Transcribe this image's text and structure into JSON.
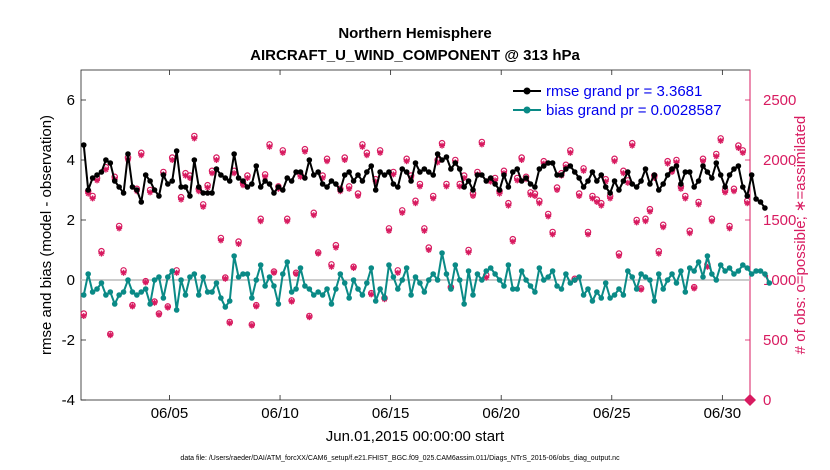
{
  "chart_data": {
    "type": "line",
    "title": "Northern Hemisphere",
    "subtitle": "AIRCRAFT_U_WIND_COMPONENT @ 313 hPa",
    "xlabel": "Jun.01,2015 00:00:00 start",
    "ylabel": "rmse and bias (model - observation)",
    "y2label": "# of obs: o=possible; ∗=assimilated",
    "footer": "data file: /Users/raeder/DAI/ATM_forcXX/CAM6_setup/f.e21.FHIST_BGC.f09_025.CAM6assim.011/Diags_NTrS_2015-06/obs_diag_output.nc",
    "xlim": [
      1,
      31.25
    ],
    "ylim": [
      -4,
      7
    ],
    "y2lim": [
      0,
      2750
    ],
    "x_ticks": [
      5,
      10,
      15,
      20,
      25,
      30
    ],
    "x_tick_labels": [
      "06/05",
      "06/10",
      "06/15",
      "06/20",
      "06/25",
      "06/30"
    ],
    "y_ticks": [
      -4,
      -2,
      0,
      2,
      4,
      6
    ],
    "y_tick_labels": [
      "-4",
      "-2",
      "0",
      "2",
      "4",
      "6"
    ],
    "y2_ticks": [
      0,
      500,
      1000,
      1500,
      2000,
      2500
    ],
    "y2_tick_labels": [
      "0",
      "500",
      "1000",
      "1500",
      "2000",
      "2500"
    ],
    "colors": {
      "rmse": "#000000",
      "bias": "#0a8a86",
      "obs": "#d81b60",
      "zero_line": "#bbbbbb"
    },
    "legend": [
      {
        "label": "rmse grand pr = 3.3681",
        "series": "rmse"
      },
      {
        "label": "bias grand pr = 0.0028587",
        "series": "bias"
      }
    ],
    "rmse_values": [
      4.5,
      3.0,
      3.4,
      3.5,
      3.6,
      4.0,
      3.9,
      3.3,
      3.1,
      2.9,
      4.2,
      3.1,
      3.0,
      2.6,
      3.5,
      3.3,
      3.0,
      2.8,
      3.5,
      3.2,
      3.3,
      4.3,
      3.1,
      3.1,
      2.8,
      4.0,
      3.1,
      2.9,
      2.9,
      2.9,
      3.7,
      3.5,
      3.4,
      3.3,
      4.2,
      3.4,
      3.3,
      3.1,
      3.2,
      3.8,
      3.1,
      3.3,
      3.2,
      2.9,
      3.1,
      3.0,
      3.4,
      3.3,
      3.6,
      3.6,
      3.4,
      4.0,
      3.5,
      3.6,
      3.2,
      3.1,
      3.3,
      3.2,
      3.0,
      3.5,
      3.6,
      3.3,
      3.5,
      3.3,
      3.6,
      3.8,
      3.0,
      3.6,
      3.5,
      3.6,
      3.2,
      3.1,
      3.7,
      3.6,
      3.3,
      3.9,
      3.6,
      3.7,
      3.6,
      3.5,
      4.2,
      4.0,
      4.1,
      3.7,
      3.9,
      3.7,
      3.1,
      3.3,
      3.0,
      3.5,
      3.5,
      3.3,
      3.4,
      3.2,
      3.0,
      3.5,
      3.1,
      3.6,
      3.7,
      3.3,
      3.4,
      3.2,
      3.1,
      3.7,
      3.8,
      3.9,
      3.9,
      3.5,
      3.5,
      3.7,
      3.8,
      3.6,
      3.4,
      3.1,
      3.3,
      3.6,
      3.3,
      3.5,
      3.1,
      2.9,
      3.3,
      3.0,
      3.3,
      3.6,
      3.2,
      3.1,
      3.3,
      3.7,
      3.2,
      3.5,
      3.0,
      3.2,
      3.5,
      3.7,
      3.8,
      3.2,
      3.6,
      3.6,
      3.1,
      3.3,
      3.8,
      3.6,
      3.4,
      3.9,
      3.5,
      3.1,
      3.5,
      3.7,
      3.8,
      3.1,
      2.8,
      3.5,
      2.7,
      2.6,
      2.4
    ],
    "bias_values": [
      -0.5,
      0.2,
      -0.4,
      -0.3,
      -0.1,
      -0.5,
      -0.4,
      -0.8,
      -0.5,
      -0.4,
      0.0,
      -0.4,
      -0.5,
      -0.4,
      -0.3,
      -0.8,
      0.0,
      0.1,
      -0.6,
      0.1,
      0.3,
      -1.0,
      0.0,
      -0.5,
      0.1,
      0.2,
      -0.5,
      0.1,
      -0.4,
      -0.4,
      -0.1,
      -0.6,
      -0.9,
      -0.7,
      0.8,
      0.1,
      0.2,
      0.2,
      -0.6,
      0.0,
      0.5,
      -0.2,
      0.1,
      -0.2,
      -0.8,
      0.2,
      0.6,
      -0.4,
      -0.3,
      0.4,
      -0.2,
      -0.3,
      -0.5,
      -0.4,
      -0.5,
      -0.3,
      -0.8,
      -0.3,
      0.2,
      -0.1,
      -0.6,
      0.0,
      -0.3,
      -0.5,
      -0.1,
      0.4,
      -0.7,
      -0.3,
      -0.6,
      0.5,
      0.1,
      -0.3,
      0.0,
      0.4,
      -0.5,
      0.1,
      -0.1,
      -0.4,
      0.0,
      0.2,
      0.0,
      0.9,
      0.2,
      -0.3,
      0.5,
      0.0,
      -0.8,
      0.3,
      -0.5,
      0.2,
      0.0,
      0.3,
      0.4,
      0.2,
      0.0,
      -0.2,
      0.5,
      -0.3,
      -0.3,
      0.3,
      0.0,
      -0.2,
      -0.4,
      0.4,
      0.0,
      0.1,
      0.3,
      -0.2,
      -0.3,
      0.2,
      -0.1,
      0.0,
      0.1,
      -0.5,
      -0.3,
      -0.7,
      -0.4,
      -0.6,
      -0.1,
      -0.6,
      -0.5,
      -0.3,
      -0.5,
      0.3,
      0.1,
      -0.3,
      0.2,
      0.1,
      0.0,
      -0.7,
      0.2,
      -0.3,
      0.0,
      0.2,
      -0.1,
      0.3,
      -0.4,
      0.4,
      0.3,
      0.6,
      0.1,
      0.8,
      0.2,
      0.0,
      0.5,
      0.3,
      0.4,
      0.2,
      0.3,
      0.5,
      0.4,
      0.2,
      0.3,
      0.3,
      0.2,
      -0.1
    ],
    "obs_possible": [
      720,
      1740,
      1700,
      1850,
      1240,
      1940,
      550,
      1860,
      1450,
      1080,
      2020,
      790,
      1760,
      2060,
      990,
      1750,
      820,
      720,
      1900,
      780,
      2020,
      1080,
      1690,
      1890,
      1870,
      2200,
      1760,
      1630,
      1790,
      1910,
      2020,
      1350,
      1020,
      650,
      1910,
      1320,
      1810,
      1870,
      630,
      790,
      1510,
      1880,
      2130,
      1070,
      1780,
      2080,
      1510,
      830,
      1060,
      1880,
      2090,
      700,
      1560,
      1230,
      1870,
      2010,
      1130,
      1290,
      1760,
      2020,
      1780,
      1110,
      1720,
      2130,
      2060,
      890,
      1840,
      2080,
      850,
      1430,
      1900,
      1080,
      1580,
      2010,
      1870,
      1660,
      1800,
      1430,
      1270,
      1700,
      2000,
      2140,
      1800,
      940,
      2000,
      1800,
      1870,
      1250,
      1720,
      1900,
      2150,
      1040,
      1840,
      1850,
      1740,
      1910,
      1640,
      1340,
      1850,
      2020,
      1860,
      1730,
      1720,
      1660,
      1990,
      1550,
      1400,
      1770,
      1890,
      1960,
      2080,
      1010,
      1720,
      1930,
      1400,
      1700,
      1670,
      1640,
      1840,
      1700,
      2010,
      1220,
      1910,
      1830,
      2140,
      1500,
      930,
      1510,
      1590,
      1870,
      1240,
      1460,
      1990,
      1920,
      2000,
      1780,
      1700,
      1410,
      940,
      1650,
      2010,
      1130,
      1510,
      2050,
      2180,
      1750,
      1450,
      1760,
      2120,
      2080,
      1660
    ],
    "obs_assimilated": [
      700,
      1720,
      1680,
      1830,
      1220,
      1920,
      540,
      1840,
      1430,
      1060,
      2000,
      780,
      1740,
      2040,
      980,
      1730,
      810,
      710,
      1880,
      770,
      2000,
      1060,
      1670,
      1870,
      1850,
      2180,
      1740,
      1610,
      1770,
      1890,
      2000,
      1330,
      1010,
      640,
      1890,
      1300,
      1790,
      1850,
      620,
      780,
      1490,
      1860,
      2110,
      1060,
      1760,
      2060,
      1490,
      820,
      1050,
      1860,
      2070,
      690,
      1540,
      1220,
      1850,
      1990,
      1110,
      1270,
      1740,
      2000,
      1760,
      1100,
      1700,
      2110,
      2040,
      880,
      1820,
      2060,
      840,
      1410,
      1880,
      1060,
      1560,
      1990,
      1850,
      1640,
      1780,
      1410,
      1250,
      1680,
      1980,
      2120,
      1780,
      930,
      1980,
      1780,
      1850,
      1230,
      1700,
      1880,
      2130,
      1020,
      1820,
      1830,
      1720,
      1890,
      1620,
      1320,
      1830,
      2000,
      1840,
      1710,
      1700,
      1640,
      1970,
      1530,
      1380,
      1750,
      1870,
      1940,
      2060,
      1000,
      1700,
      1910,
      1380,
      1680,
      1650,
      1620,
      1820,
      1680,
      1990,
      1200,
      1890,
      1810,
      2120,
      1480,
      920,
      1490,
      1570,
      1850,
      1220,
      1440,
      1970,
      1900,
      1980,
      1760,
      1680,
      1390,
      930,
      1630,
      1990,
      1110,
      1490,
      2030,
      2160,
      1730,
      1430,
      1740,
      2100,
      2060,
      1640
    ]
  }
}
